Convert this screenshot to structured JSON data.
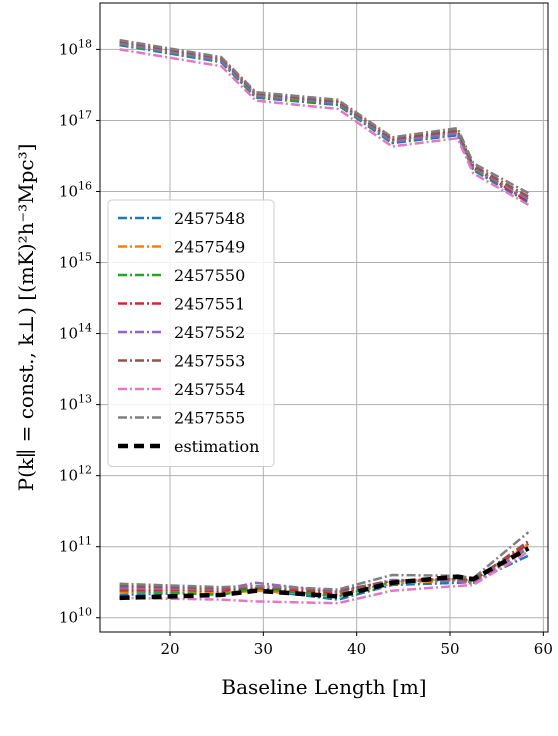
{
  "chart_data": {
    "type": "line",
    "xlabel": "Baseline Length [m]",
    "ylabel": "P(k∥ = const., k⊥) [(mK)²h⁻³Mpc³]",
    "x_ticks": [
      20,
      30,
      40,
      50,
      60
    ],
    "y_ticks": [
      {
        "value": 10000000000.0,
        "base": "10",
        "exp": "10"
      },
      {
        "value": 100000000000.0,
        "base": "10",
        "exp": "11"
      },
      {
        "value": 1000000000000.0,
        "base": "10",
        "exp": "12"
      },
      {
        "value": 10000000000000.0,
        "base": "10",
        "exp": "13"
      },
      {
        "value": 100000000000000.0,
        "base": "10",
        "exp": "14"
      },
      {
        "value": 1000000000000000.0,
        "base": "10",
        "exp": "15"
      },
      {
        "value": 1e+16,
        "base": "10",
        "exp": "16"
      },
      {
        "value": 1e+17,
        "base": "10",
        "exp": "17"
      },
      {
        "value": 1e+18,
        "base": "10",
        "exp": "18"
      }
    ],
    "xlim": [
      12.5,
      60.5
    ],
    "ylim": [
      6300000000.0,
      4.5e+18
    ],
    "yscale": "log",
    "grid": true,
    "legend_position": "center-left",
    "x": [
      14.6,
      25.5,
      29.2,
      38.0,
      43.8,
      50.8,
      52.5,
      58.4
    ],
    "series": [
      {
        "name": "2457548",
        "color": "#1f77b4",
        "style": "dashdot",
        "upper": [
          1.15e+18,
          6.6e+17,
          2.1e+17,
          1.65e+17,
          4.8e+16,
          6.2e+16,
          2e+16,
          7000000000000000.0
        ],
        "lower": [
          21000000000.0,
          23000000000.0,
          25000000000.0,
          18000000000.0,
          29000000000.0,
          31000000000.0,
          32000000000.0,
          75000000000.0
        ]
      },
      {
        "name": "2457549",
        "color": "#ff7f0e",
        "style": "dashdot",
        "upper": [
          1.2e+18,
          6.9e+17,
          2.2e+17,
          1.75e+17,
          5.2e+16,
          6.8e+16,
          2.1e+16,
          8000000000000000.0
        ],
        "lower": [
          23000000000.0,
          22000000000.0,
          24000000000.0,
          21000000000.0,
          30000000000.0,
          34000000000.0,
          30000000000.0,
          110000000000.0
        ]
      },
      {
        "name": "2457550",
        "color": "#2ca02c",
        "style": "dashdot",
        "upper": [
          1.18e+18,
          6.8e+17,
          2.15e+17,
          1.7e+17,
          5e+16,
          6.5e+16,
          2.05e+16,
          7500000000000000.0
        ],
        "lower": [
          24000000000.0,
          21000000000.0,
          26000000000.0,
          20000000000.0,
          32000000000.0,
          35000000000.0,
          31000000000.0,
          95000000000.0
        ]
      },
      {
        "name": "2457551",
        "color": "#d62728",
        "style": "dashdot",
        "upper": [
          1.25e+18,
          7.2e+17,
          2.3e+17,
          1.8e+17,
          5.3e+16,
          7e+16,
          2.2e+16,
          7200000000000000.0
        ],
        "lower": [
          25000000000.0,
          24000000000.0,
          27000000000.0,
          22000000000.0,
          33000000000.0,
          36000000000.0,
          34000000000.0,
          110000000000.0
        ]
      },
      {
        "name": "2457552",
        "color": "#9467bd",
        "style": "dashdot",
        "upper": [
          1.22e+18,
          7e+17,
          2.25e+17,
          1.78e+17,
          5.1e+16,
          6.6e+16,
          2.15e+16,
          7800000000000000.0
        ],
        "lower": [
          26000000000.0,
          25000000000.0,
          31000000000.0,
          23000000000.0,
          34000000000.0,
          33000000000.0,
          30000000000.0,
          100000000000.0
        ]
      },
      {
        "name": "2457553",
        "color": "#8c564b",
        "style": "dashdot",
        "upper": [
          1.3e+18,
          7.5e+17,
          2.4e+17,
          1.85e+17,
          5.5e+16,
          7.2e+16,
          2.3e+16,
          8500000000000000.0
        ],
        "lower": [
          28000000000.0,
          26000000000.0,
          27000000000.0,
          24000000000.0,
          33000000000.0,
          35000000000.0,
          33000000000.0,
          120000000000.0
        ]
      },
      {
        "name": "2457554",
        "color": "#e377c2",
        "style": "dashdot",
        "upper": [
          1e+18,
          5.8e+17,
          1.9e+17,
          1.45e+17,
          4.3e+16,
          5.6e+16,
          1.8e+16,
          6500000000000000.0
        ],
        "lower": [
          19000000000.0,
          18000000000.0,
          17000000000.0,
          16000000000.0,
          24000000000.0,
          28000000000.0,
          29000000000.0,
          85000000000.0
        ]
      },
      {
        "name": "2457555",
        "color": "#7f7f7f",
        "style": "dashdot",
        "upper": [
          1.35e+18,
          7.8e+17,
          2.5e+17,
          1.95e+17,
          5.8e+16,
          7.8e+16,
          2.5e+16,
          9500000000000000.0
        ],
        "lower": [
          30000000000.0,
          27000000000.0,
          28000000000.0,
          25000000000.0,
          40000000000.0,
          39000000000.0,
          36000000000.0,
          160000000000.0
        ]
      },
      {
        "name": "estimation",
        "color": "#000000",
        "style": "dashed",
        "lower": [
          19000000000.0,
          21000000000.0,
          24000000000.0,
          20000000000.0,
          31000000000.0,
          38000000000.0,
          35000000000.0,
          95000000000.0
        ]
      }
    ]
  }
}
